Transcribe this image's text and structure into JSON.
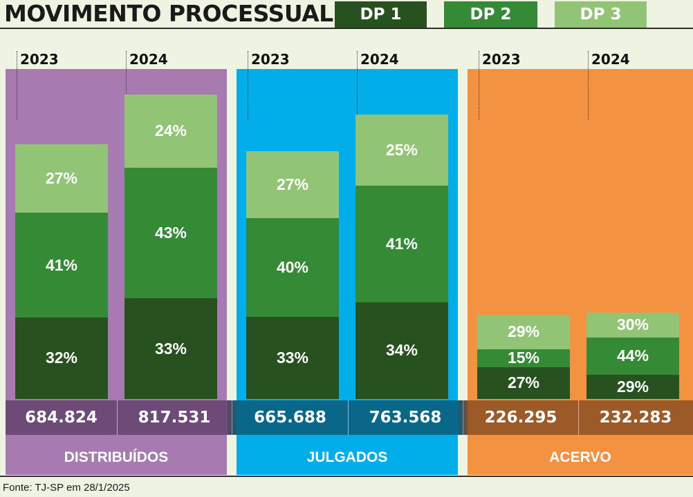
{
  "title": "MOVIMENTO PROCESSUAL",
  "legend": [
    {
      "label": "DP 1",
      "color": "#27521f",
      "text_color": "#ffffff"
    },
    {
      "label": "DP 2",
      "color": "#358a35",
      "text_color": "#ffffff"
    },
    {
      "label": "DP 3",
      "color": "#92c475",
      "text_color": "#ffffff"
    }
  ],
  "source": "Fonte: TJ-SP em 28/1/2025",
  "colors": {
    "dp1": "#27521f",
    "dp2": "#358a35",
    "dp3": "#92c475",
    "distribuidos_panel": "#a77ab1",
    "distribuidos_band": "#6e4a78",
    "julgados_panel": "#01aeea",
    "julgados_band": "#09688a",
    "acervo_panel": "#f39341",
    "acervo_band": "#9b5a28"
  },
  "chart_data": {
    "type": "bar",
    "stacked": true,
    "title": "MOVIMENTO PROCESSUAL",
    "series_names": [
      "DP 1",
      "DP 2",
      "DP 3"
    ],
    "groups": [
      {
        "name": "DISTRIBUÍDOS",
        "panel_color": "#a77ab1",
        "band_color": "#6e4a78",
        "bars": [
          {
            "year": "2023",
            "total": 684824,
            "total_label": "684.824",
            "shares": [
              32,
              41,
              27
            ],
            "labels": [
              "32%",
              "41%",
              "27%"
            ]
          },
          {
            "year": "2024",
            "total": 817531,
            "total_label": "817.531",
            "shares": [
              33,
              43,
              24
            ],
            "labels": [
              "33%",
              "43%",
              "24%"
            ]
          }
        ]
      },
      {
        "name": "JULGADOS",
        "panel_color": "#01aeea",
        "band_color": "#09688a",
        "bars": [
          {
            "year": "2023",
            "total": 665688,
            "total_label": "665.688",
            "shares": [
              33,
              40,
              27
            ],
            "labels": [
              "33%",
              "40%",
              "27%"
            ]
          },
          {
            "year": "2024",
            "total": 763568,
            "total_label": "763.568",
            "shares": [
              34,
              41,
              25
            ],
            "labels": [
              "34%",
              "41%",
              "25%"
            ]
          }
        ]
      },
      {
        "name": "ACERVO",
        "panel_color": "#f39341",
        "band_color": "#9b5a28",
        "bars": [
          {
            "year": "2023",
            "total": 226295,
            "total_label": "226.295",
            "shares": [
              27,
              15,
              29
            ],
            "labels": [
              "27%",
              "15%",
              "29%"
            ]
          },
          {
            "year": "2024",
            "total": 232283,
            "total_label": "232.283",
            "shares": [
              29,
              44,
              30
            ],
            "labels": [
              "29%",
              "44%",
              "30%"
            ]
          }
        ]
      }
    ]
  }
}
